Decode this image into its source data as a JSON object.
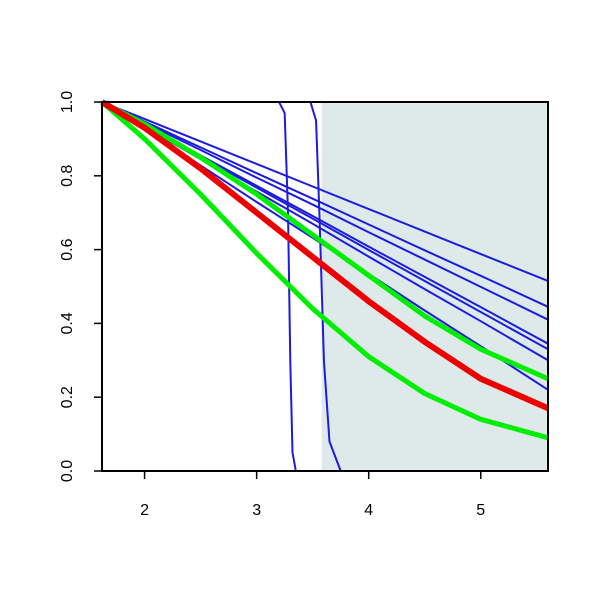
{
  "chart_data": {
    "type": "line",
    "xlim": [
      1.62,
      5.6
    ],
    "ylim": [
      0,
      1
    ],
    "xticks": [
      2,
      3,
      4,
      5
    ],
    "yticks": [
      {
        "value": 0,
        "label": "0.0"
      },
      0.2,
      0.4,
      0.6,
      0.8,
      {
        "value": 1,
        "label": "1.0"
      }
    ],
    "shaded_region": {
      "x": [
        3.58,
        5.6
      ],
      "color": "#deeaea"
    },
    "series": [
      {
        "color": "#1c1ce0",
        "width": 2,
        "x": [
          1.62,
          2,
          2.5,
          3,
          3.5,
          4,
          4.5,
          5,
          5.6
        ],
        "values": [
          1,
          0.954,
          0.893,
          0.832,
          0.771,
          0.71,
          0.649,
          0.588,
          0.515
        ]
      },
      {
        "color": "#1c1ce0",
        "width": 2,
        "x": [
          1.62,
          2,
          2.5,
          3,
          3.5,
          4,
          4.5,
          5,
          5.6
        ],
        "values": [
          1,
          0.947,
          0.877,
          0.807,
          0.738,
          0.668,
          0.598,
          0.529,
          0.445
        ]
      },
      {
        "color": "#1c1ce0",
        "width": 2,
        "x": [
          1.62,
          2,
          2.5,
          3,
          3.5,
          4,
          4.5,
          5,
          5.6
        ],
        "values": [
          1,
          0.944,
          0.87,
          0.795,
          0.722,
          0.647,
          0.573,
          0.499,
          0.41
        ]
      },
      {
        "color": "#1c1ce0",
        "width": 2,
        "x": [
          1.62,
          2,
          2.5,
          3,
          3.5,
          4,
          4.5,
          5,
          5.6
        ],
        "values": [
          1,
          0.937,
          0.855,
          0.773,
          0.691,
          0.608,
          0.526,
          0.444,
          0.345
        ]
      },
      {
        "color": "#1c1ce0",
        "width": 2,
        "x": [
          1.62,
          2,
          2.5,
          3,
          3.5,
          4,
          4.5,
          5,
          5.6
        ],
        "values": [
          1,
          0.936,
          0.852,
          0.768,
          0.684,
          0.599,
          0.515,
          0.431,
          0.33
        ]
      },
      {
        "color": "#1c1ce0",
        "width": 2,
        "x": [
          1.62,
          2,
          2.5,
          3,
          3.5,
          4,
          4.5,
          5,
          5.6
        ],
        "values": [
          1,
          0.933,
          0.845,
          0.757,
          0.67,
          0.581,
          0.493,
          0.406,
          0.3
        ]
      },
      {
        "color": "#1c1ce0",
        "width": 2,
        "x": [
          1.62,
          2,
          2.5,
          3,
          3.5,
          4,
          4.5,
          5,
          5.6
        ],
        "values": [
          1,
          0.926,
          0.828,
          0.729,
          0.632,
          0.534,
          0.435,
          0.338,
          0.22
        ]
      },
      {
        "color": "#1c1ce0",
        "width": 2,
        "x": [
          1.62,
          3.2,
          3.25,
          3.28,
          3.3,
          3.32,
          3.35,
          5.6
        ],
        "values": [
          1,
          1,
          0.97,
          0.7,
          0.3,
          0.05,
          0,
          0
        ]
      },
      {
        "color": "#1c1ce0",
        "width": 2,
        "x": [
          1.62,
          3.48,
          3.53,
          3.56,
          3.6,
          3.65,
          3.75,
          5.6
        ],
        "values": [
          1,
          1,
          0.95,
          0.7,
          0.3,
          0.08,
          0,
          0
        ]
      },
      {
        "color": "#00ee00",
        "width": 5,
        "x": [
          1.62,
          2,
          2.5,
          3,
          3.5,
          4,
          4.5,
          5,
          5.6
        ],
        "values": [
          1,
          0.94,
          0.85,
          0.75,
          0.64,
          0.53,
          0.42,
          0.33,
          0.25
        ]
      },
      {
        "color": "#00ee00",
        "width": 5,
        "x": [
          1.62,
          2,
          2.5,
          3,
          3.5,
          4,
          4.5,
          5,
          5.6
        ],
        "values": [
          1,
          0.9,
          0.75,
          0.59,
          0.44,
          0.31,
          0.21,
          0.14,
          0.09
        ]
      },
      {
        "color": "#ee0000",
        "width": 6,
        "x": [
          1.62,
          2,
          2.5,
          3,
          3.5,
          4,
          4.5,
          5,
          5.6
        ],
        "values": [
          1,
          0.93,
          0.82,
          0.7,
          0.58,
          0.46,
          0.35,
          0.25,
          0.17
        ]
      }
    ]
  }
}
